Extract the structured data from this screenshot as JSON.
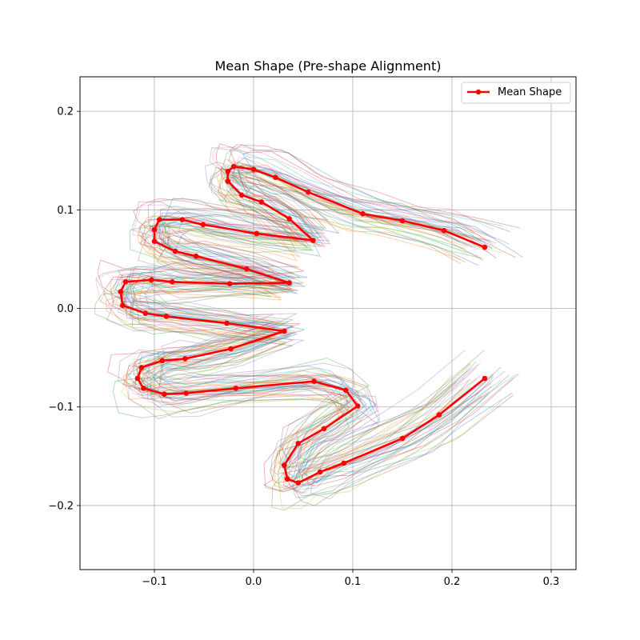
{
  "chart_data": {
    "type": "line",
    "title": "Mean Shape (Pre-shape Alignment)",
    "xlabel": "",
    "ylabel": "",
    "xlim": [
      -0.175,
      0.325
    ],
    "ylim": [
      -0.265,
      0.235
    ],
    "xticks": [
      -0.1,
      0.0,
      0.1,
      0.2,
      0.3
    ],
    "yticks": [
      -0.2,
      -0.1,
      0.0,
      0.1,
      0.2
    ],
    "xtick_labels": [
      "−0.1",
      "0.0",
      "0.1",
      "0.2",
      "0.3"
    ],
    "ytick_labels": [
      "−0.2",
      "−0.1",
      "0.0",
      "0.1",
      "0.2"
    ],
    "grid": true,
    "legend": {
      "placement": "top-right",
      "entries": [
        "Mean Shape"
      ]
    },
    "background_curve_count": 40,
    "background_colors": [
      "#1f77b4",
      "#2ca02c",
      "#9467bd",
      "#bcbd22",
      "#e377c2",
      "#8c564b",
      "#17becf",
      "#7f7f7f",
      "#d62728",
      "#ff7f0e"
    ],
    "series": [
      {
        "name": "Mean Shape",
        "color": "#ff0000",
        "marker": "circle",
        "points": [
          [
            0.233,
            0.062
          ],
          [
            0.192,
            0.079
          ],
          [
            0.15,
            0.089
          ],
          [
            0.11,
            0.096
          ],
          [
            0.055,
            0.118
          ],
          [
            0.022,
            0.133
          ],
          [
            0.0,
            0.141
          ],
          [
            -0.02,
            0.144
          ],
          [
            -0.026,
            0.139
          ],
          [
            -0.026,
            0.129
          ],
          [
            -0.012,
            0.115
          ],
          [
            0.008,
            0.108
          ],
          [
            0.036,
            0.091
          ],
          [
            0.06,
            0.069
          ],
          [
            0.003,
            0.076
          ],
          [
            -0.051,
            0.085
          ],
          [
            -0.072,
            0.09
          ],
          [
            -0.095,
            0.09
          ],
          [
            -0.1,
            0.08
          ],
          [
            -0.1,
            0.068
          ],
          [
            -0.079,
            0.058
          ],
          [
            -0.058,
            0.053
          ],
          [
            -0.007,
            0.04
          ],
          [
            0.036,
            0.026
          ],
          [
            -0.024,
            0.025
          ],
          [
            -0.082,
            0.027
          ],
          [
            -0.103,
            0.029
          ],
          [
            -0.129,
            0.027
          ],
          [
            -0.134,
            0.017
          ],
          [
            -0.132,
            0.003
          ],
          [
            -0.109,
            -0.005
          ],
          [
            -0.088,
            -0.008
          ],
          [
            -0.027,
            -0.015
          ],
          [
            0.031,
            -0.023
          ],
          [
            -0.023,
            -0.041
          ],
          [
            -0.069,
            -0.051
          ],
          [
            -0.092,
            -0.053
          ],
          [
            -0.113,
            -0.06
          ],
          [
            -0.117,
            -0.071
          ],
          [
            -0.111,
            -0.081
          ],
          [
            -0.09,
            -0.087
          ],
          [
            -0.068,
            -0.086
          ],
          [
            -0.018,
            -0.081
          ],
          [
            0.061,
            -0.074
          ],
          [
            0.093,
            -0.083
          ],
          [
            0.105,
            -0.099
          ],
          [
            0.071,
            -0.122
          ],
          [
            0.045,
            -0.137
          ],
          [
            0.031,
            -0.159
          ],
          [
            0.034,
            -0.173
          ],
          [
            0.045,
            -0.177
          ],
          [
            0.067,
            -0.166
          ],
          [
            0.091,
            -0.157
          ],
          [
            0.15,
            -0.132
          ],
          [
            0.187,
            -0.108
          ],
          [
            0.233,
            -0.071
          ]
        ]
      }
    ]
  }
}
